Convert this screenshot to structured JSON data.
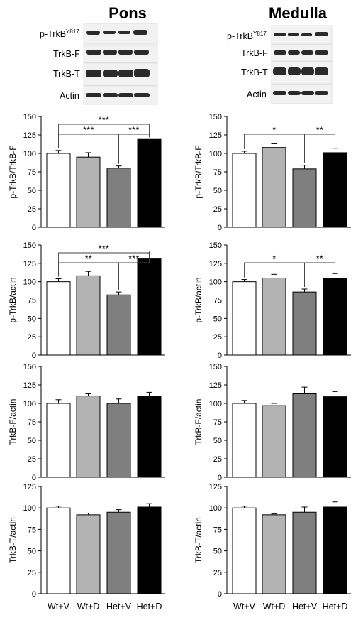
{
  "titles": {
    "left": "Pons",
    "right": "Medulla"
  },
  "blot_labels": {
    "p_trkb": "p-TrkB",
    "p_trkb_sup": "Y817",
    "trkb_f": "TrkB-F",
    "trkb_t": "TrkB-T",
    "actin": "Actin"
  },
  "colors": {
    "Wt+V": "#ffffff",
    "Wt+D": "#b3b3b3",
    "Het+V": "#7f7f7f",
    "Het+D": "#000000"
  },
  "chart_data": [
    {
      "type": "bar",
      "region": "Pons",
      "ylabel": "p-TrkB/TrkB-F",
      "ylim": [
        0,
        150
      ],
      "yticks": [
        0,
        25,
        50,
        75,
        100,
        125,
        150
      ],
      "categories": [
        "Wt+V",
        "Wt+D",
        "Het+V",
        "Het+D"
      ],
      "values": [
        100,
        95,
        80,
        119
      ],
      "errors": [
        4,
        6,
        3,
        0
      ],
      "significance": [
        {
          "from": "Wt+V",
          "to": "Het+D",
          "label": "***"
        },
        {
          "from": "Wt+V",
          "to": "Het+V",
          "label": "***"
        },
        {
          "from": "Het+V",
          "to": "Het+D",
          "label": "***"
        }
      ]
    },
    {
      "type": "bar",
      "region": "Medulla",
      "ylabel": "p-TrkB/TrkB-F",
      "ylim": [
        0,
        150
      ],
      "yticks": [
        0,
        25,
        50,
        75,
        100,
        125,
        150
      ],
      "categories": [
        "Wt+V",
        "Wt+D",
        "Het+V",
        "Het+D"
      ],
      "values": [
        100,
        108,
        79,
        101
      ],
      "errors": [
        3,
        5,
        5,
        6
      ],
      "significance": [
        {
          "from": "Wt+V",
          "to": "Het+V",
          "label": "*"
        },
        {
          "from": "Het+V",
          "to": "Het+D",
          "label": "**"
        }
      ]
    },
    {
      "type": "bar",
      "region": "Pons",
      "ylabel": "p-TrkB/actin",
      "ylim": [
        0,
        150
      ],
      "yticks": [
        0,
        25,
        50,
        75,
        100,
        125,
        150
      ],
      "categories": [
        "Wt+V",
        "Wt+D",
        "Het+V",
        "Het+D"
      ],
      "values": [
        100,
        108,
        82,
        132
      ],
      "errors": [
        4,
        6,
        4,
        6
      ],
      "significance": [
        {
          "from": "Wt+V",
          "to": "Het+D",
          "label": "***"
        },
        {
          "from": "Wt+V",
          "to": "Het+V",
          "label": "**"
        },
        {
          "from": "Het+V",
          "to": "Het+D",
          "label": "***"
        }
      ]
    },
    {
      "type": "bar",
      "region": "Medulla",
      "ylabel": "p-TrkB/actin",
      "ylim": [
        0,
        150
      ],
      "yticks": [
        0,
        25,
        50,
        75,
        100,
        125,
        150
      ],
      "categories": [
        "Wt+V",
        "Wt+D",
        "Het+V",
        "Het+D"
      ],
      "values": [
        100,
        105,
        86,
        105
      ],
      "errors": [
        3,
        5,
        4,
        6
      ],
      "significance": [
        {
          "from": "Wt+V",
          "to": "Het+V",
          "label": "*"
        },
        {
          "from": "Het+V",
          "to": "Het+D",
          "label": "**"
        }
      ]
    },
    {
      "type": "bar",
      "region": "Pons",
      "ylabel": "TrkB-F/actin",
      "ylim": [
        0,
        150
      ],
      "yticks": [
        0,
        25,
        50,
        75,
        100,
        125,
        150
      ],
      "categories": [
        "Wt+V",
        "Wt+D",
        "Het+V",
        "Het+D"
      ],
      "values": [
        100,
        110,
        100,
        110
      ],
      "errors": [
        5,
        3,
        6,
        5
      ],
      "significance": []
    },
    {
      "type": "bar",
      "region": "Medulla",
      "ylabel": "TrkB-F/actin",
      "ylim": [
        0,
        150
      ],
      "yticks": [
        0,
        25,
        50,
        75,
        100,
        125,
        150
      ],
      "categories": [
        "Wt+V",
        "Wt+D",
        "Het+V",
        "Het+D"
      ],
      "values": [
        100,
        97,
        113,
        109
      ],
      "errors": [
        4,
        3,
        9,
        7
      ],
      "significance": []
    },
    {
      "type": "bar",
      "region": "Pons",
      "ylabel": "TrkB-T/actin",
      "ylim": [
        0,
        125
      ],
      "yticks": [
        0,
        25,
        50,
        75,
        100,
        125
      ],
      "categories": [
        "Wt+V",
        "Wt+D",
        "Het+V",
        "Het+D"
      ],
      "values": [
        100,
        92,
        95,
        101
      ],
      "errors": [
        2,
        2,
        3,
        4
      ],
      "significance": []
    },
    {
      "type": "bar",
      "region": "Medulla",
      "ylabel": "TrkB-T/actin",
      "ylim": [
        0,
        125
      ],
      "yticks": [
        0,
        25,
        50,
        75,
        100,
        125
      ],
      "categories": [
        "Wt+V",
        "Wt+D",
        "Het+V",
        "Het+D"
      ],
      "values": [
        100,
        92,
        95,
        101
      ],
      "errors": [
        2,
        1,
        6,
        6
      ],
      "significance": []
    }
  ]
}
